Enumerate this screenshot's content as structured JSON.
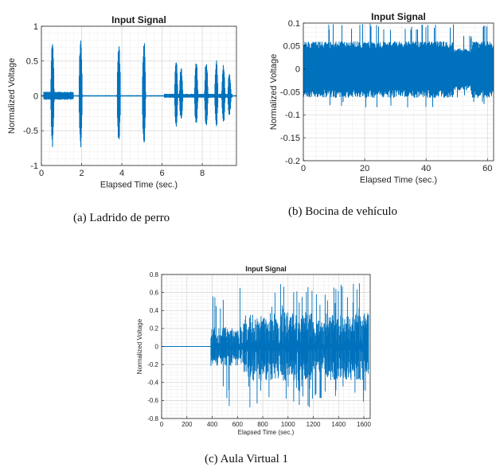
{
  "chart_data": [
    {
      "type": "line",
      "title": "Input Signal",
      "xlabel": "Elapsed Time (sec.)",
      "ylabel": "Normalized Voltage",
      "xlim": [
        0,
        9.7
      ],
      "ylim": [
        -1,
        1
      ],
      "xticks": [
        0,
        2,
        4,
        6,
        8
      ],
      "yticks": [
        -1,
        -0.5,
        0,
        0.5,
        1
      ],
      "ytick_labels": [
        "-1",
        "-0.5",
        "0",
        "0.5",
        "1"
      ],
      "grid": true,
      "color": "#0072BD",
      "series": [
        {
          "bursts": [
            {
              "t": 0.55,
              "amp": 0.87
            },
            {
              "t": 1.95,
              "amp": 0.87
            },
            {
              "t": 3.85,
              "amp": 0.87
            },
            {
              "t": 5.1,
              "amp": 0.85
            },
            {
              "t": 6.7,
              "amp": 0.52
            },
            {
              "t": 6.95,
              "amp": 0.45
            },
            {
              "t": 7.7,
              "amp": 0.55
            },
            {
              "t": 8.2,
              "amp": 0.55
            },
            {
              "t": 8.7,
              "amp": 0.55
            },
            {
              "t": 9.05,
              "amp": 0.45
            },
            {
              "t": 9.35,
              "amp": 0.35
            }
          ]
        }
      ],
      "caption": "(a)  Ladrido de perro"
    },
    {
      "type": "line",
      "title": "Input Signal",
      "xlabel": "Elapsed Time (sec.)",
      "ylabel": "Normalized Voltage",
      "xlim": [
        0,
        62
      ],
      "ylim": [
        -0.2,
        0.1
      ],
      "xticks": [
        0,
        20,
        40,
        60
      ],
      "yticks": [
        -0.2,
        -0.15,
        -0.1,
        -0.05,
        0,
        0.05,
        0.1
      ],
      "ytick_labels": [
        "-0.2",
        "-0.15",
        "-0.1",
        "-0.05",
        "0",
        "0.05",
        "0.1"
      ],
      "grid": true,
      "color": "#0072BD",
      "series": [
        {
          "noise_range": [
            -0.07,
            0.1
          ],
          "typical_amp": 0.06
        }
      ],
      "caption": "(b)  Bocina de vehículo"
    },
    {
      "type": "line",
      "title": "Input Signal",
      "xlabel": "Elapsed Time (sec.)",
      "ylabel": "Normalized Voltage",
      "xlim": [
        0,
        1650
      ],
      "ylim": [
        -0.8,
        0.8
      ],
      "xticks": [
        0,
        200,
        400,
        600,
        800,
        1000,
        1200,
        1400,
        1600
      ],
      "yticks": [
        -0.8,
        -0.6,
        -0.4,
        -0.2,
        0,
        0.2,
        0.4,
        0.6,
        0.8
      ],
      "ytick_labels": [
        "-0.8",
        "-0.6",
        "-0.4",
        "-0.2",
        "0",
        "0.2",
        "0.4",
        "0.6",
        "0.8"
      ],
      "grid": true,
      "color": "#0072BD",
      "series": [
        {
          "signal_start": 390,
          "signal_end": 1640,
          "peak_range": [
            -0.68,
            0.7
          ]
        }
      ],
      "caption": "(c) Aula Virtual 1"
    }
  ]
}
